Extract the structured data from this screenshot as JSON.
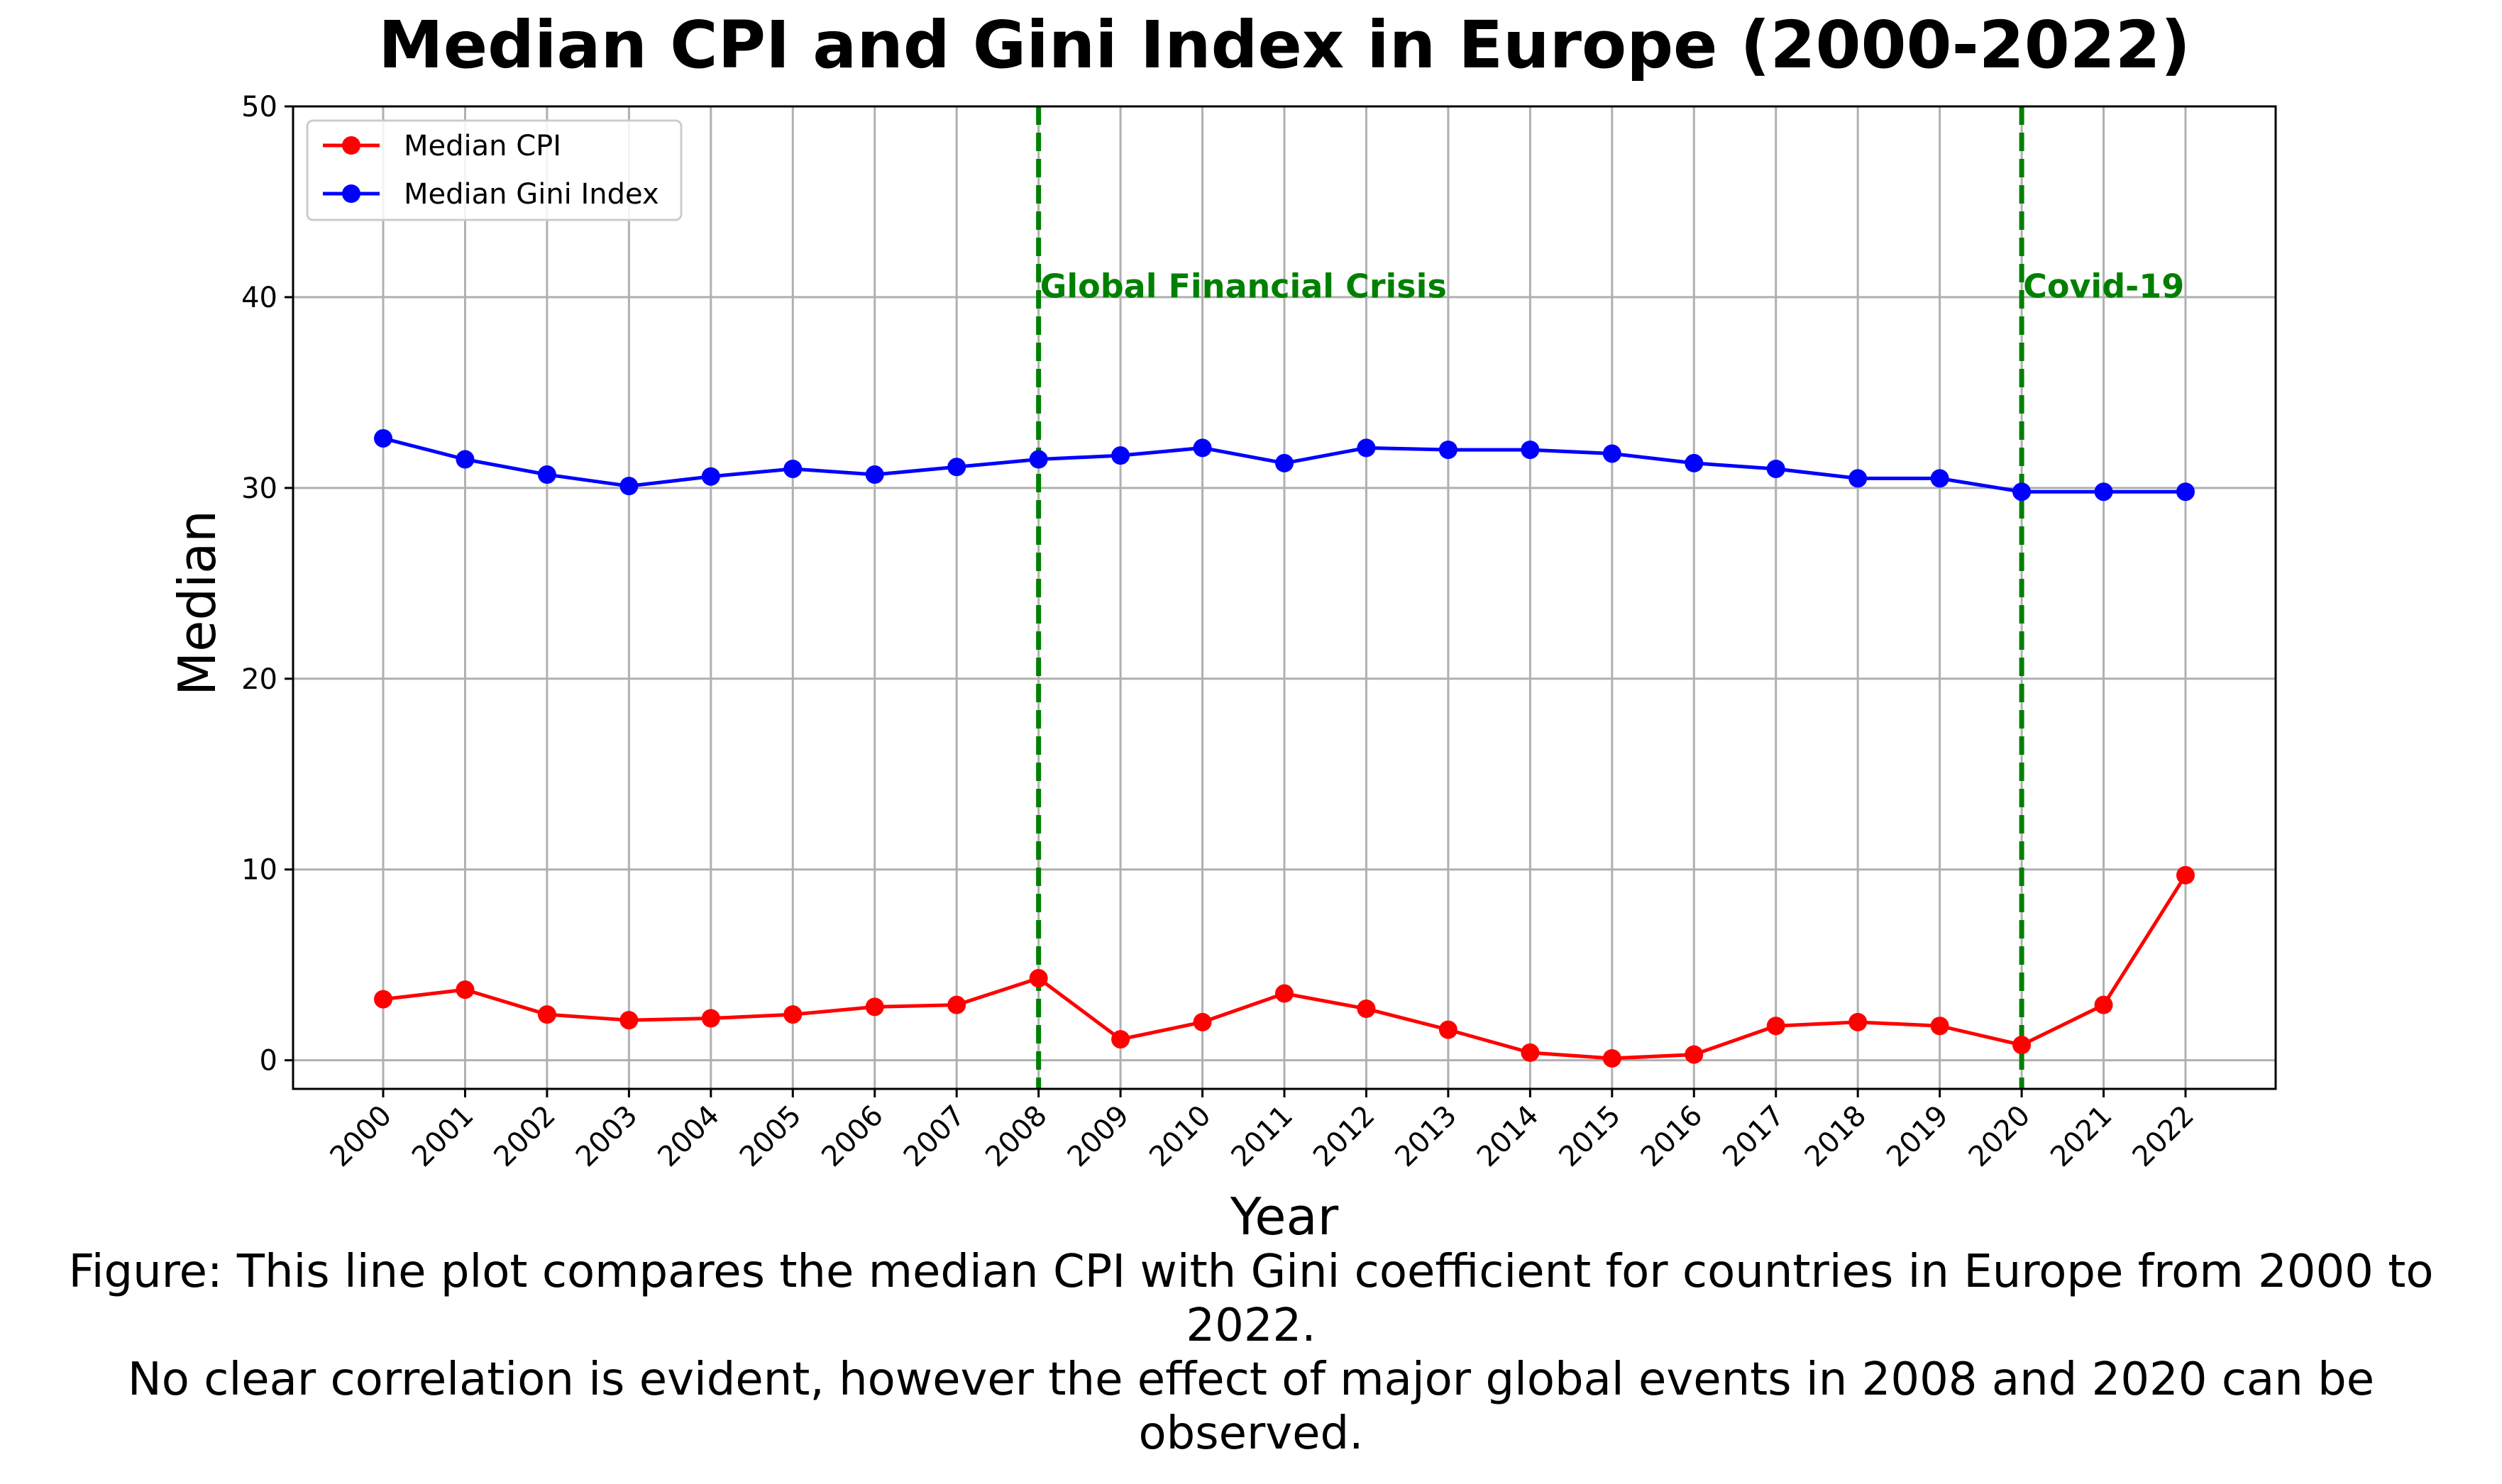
{
  "chart_data": {
    "type": "line",
    "title": "Median CPI and Gini Index in Europe (2000-2022)",
    "xlabel": "Year",
    "ylabel": "Median",
    "ylim": [
      -1.5,
      50
    ],
    "yticks": [
      0,
      10,
      20,
      30,
      40,
      50
    ],
    "grid": true,
    "legend_position": "top-left",
    "x": [
      2000,
      2001,
      2002,
      2003,
      2004,
      2005,
      2006,
      2007,
      2008,
      2009,
      2010,
      2011,
      2012,
      2013,
      2014,
      2015,
      2016,
      2017,
      2018,
      2019,
      2020,
      2021,
      2022
    ],
    "series": [
      {
        "name": "Median CPI",
        "color": "#ff0000",
        "values": [
          3.2,
          3.7,
          2.4,
          2.1,
          2.2,
          2.4,
          2.8,
          2.9,
          4.3,
          1.1,
          2.0,
          3.5,
          2.7,
          1.6,
          0.4,
          0.1,
          0.3,
          1.8,
          2.0,
          1.8,
          0.8,
          2.9,
          9.7
        ]
      },
      {
        "name": "Median Gini Index",
        "color": "#0000ff",
        "values": [
          32.6,
          31.5,
          30.7,
          30.1,
          30.6,
          31.0,
          30.7,
          31.1,
          31.5,
          31.7,
          32.1,
          31.3,
          32.1,
          32.0,
          32.0,
          31.8,
          31.3,
          31.0,
          30.5,
          30.5,
          29.8,
          29.8,
          29.8
        ]
      }
    ],
    "annotations": [
      {
        "x": 2008,
        "label": "Global Financial Crisis",
        "color": "#008000",
        "y": 40.5
      },
      {
        "x": 2020,
        "label": "Covid-19",
        "color": "#008000",
        "y": 40.5
      }
    ]
  },
  "caption": {
    "line1": "Figure: This line plot compares the median CPI with Gini coefficient for countries in Europe from 2000 to",
    "line2": "2022.",
    "line3": "No clear correlation is evident, however the effect of major global events in 2008 and 2020 can be",
    "line4": "observed."
  }
}
